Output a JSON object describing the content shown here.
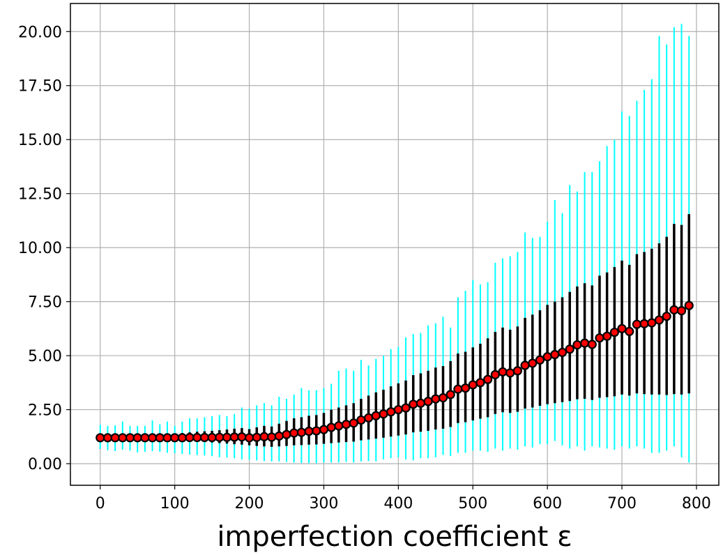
{
  "chart_data": {
    "type": "scatter",
    "title": "",
    "xlabel": "imperfection coefficient ε",
    "ylabel": "",
    "xlim": [
      -40,
      830
    ],
    "ylim": [
      -1.0,
      21.3
    ],
    "x_ticks": [
      0,
      100,
      200,
      300,
      400,
      500,
      600,
      700,
      800
    ],
    "x_tick_labels": [
      "0",
      "100",
      "200",
      "300",
      "400",
      "500",
      "600",
      "700",
      "800"
    ],
    "y_ticks": [
      0,
      2.5,
      5,
      7.5,
      10,
      12.5,
      15,
      17.5,
      20
    ],
    "y_tick_labels": [
      "0.00",
      "2.50",
      "5.00",
      "7.50",
      "10.00",
      "12.50",
      "15.00",
      "17.50",
      "20.00"
    ],
    "grid": true,
    "x": [
      0,
      10,
      20,
      30,
      40,
      50,
      60,
      70,
      80,
      90,
      100,
      110,
      120,
      130,
      140,
      150,
      160,
      170,
      180,
      190,
      200,
      210,
      220,
      230,
      240,
      250,
      260,
      270,
      280,
      290,
      300,
      310,
      320,
      330,
      340,
      350,
      360,
      370,
      380,
      390,
      400,
      410,
      420,
      430,
      440,
      450,
      460,
      470,
      480,
      490,
      500,
      510,
      520,
      530,
      540,
      550,
      560,
      570,
      580,
      590,
      600,
      610,
      620,
      630,
      640,
      650,
      660,
      670,
      680,
      690,
      700,
      710,
      720,
      730,
      740,
      750,
      760,
      770,
      780,
      790
    ],
    "series": [
      {
        "type": "scatter",
        "marker_color": "#ff0000",
        "edge_color": "#000000",
        "values": [
          1.2,
          1.2,
          1.2,
          1.2,
          1.2,
          1.2,
          1.2,
          1.2,
          1.2,
          1.2,
          1.2,
          1.2,
          1.21,
          1.21,
          1.21,
          1.21,
          1.22,
          1.22,
          1.23,
          1.24,
          1.2,
          1.22,
          1.25,
          1.23,
          1.28,
          1.35,
          1.42,
          1.45,
          1.5,
          1.52,
          1.58,
          1.68,
          1.75,
          1.82,
          1.88,
          2.02,
          2.12,
          2.22,
          2.3,
          2.4,
          2.5,
          2.58,
          2.75,
          2.8,
          2.88,
          3.0,
          3.05,
          3.2,
          3.45,
          3.5,
          3.65,
          3.75,
          3.9,
          4.12,
          4.25,
          4.2,
          4.3,
          4.55,
          4.65,
          4.8,
          4.95,
          5.05,
          5.15,
          5.3,
          5.5,
          5.58,
          5.52,
          5.82,
          5.9,
          6.08,
          6.25,
          6.12,
          6.45,
          6.48,
          6.52,
          6.65,
          6.82,
          7.12,
          7.08,
          7.32
        ]
      },
      {
        "type": "errorbar",
        "color": "#000000",
        "lower": [
          1.05,
          1.05,
          1.05,
          1.05,
          1.05,
          1.05,
          1.05,
          1.05,
          1.05,
          1.05,
          1.05,
          1.05,
          1.02,
          1.02,
          1.0,
          0.98,
          0.95,
          0.93,
          0.9,
          0.88,
          0.85,
          0.82,
          0.8,
          0.78,
          0.8,
          0.82,
          0.85,
          0.86,
          0.88,
          0.89,
          0.92,
          0.95,
          0.98,
          1.0,
          1.02,
          1.08,
          1.12,
          1.16,
          1.2,
          1.25,
          1.3,
          1.35,
          1.45,
          1.48,
          1.52,
          1.58,
          1.62,
          1.7,
          1.88,
          1.92,
          2.0,
          2.08,
          2.15,
          2.3,
          2.38,
          2.35,
          2.4,
          2.55,
          2.6,
          2.68,
          2.75,
          2.8,
          2.85,
          2.9,
          2.98,
          3.0,
          2.95,
          3.05,
          3.08,
          3.12,
          3.2,
          3.15,
          3.25,
          3.22,
          3.2,
          3.2,
          3.18,
          3.22,
          3.2,
          3.25
        ],
        "upper": [
          1.38,
          1.38,
          1.38,
          1.38,
          1.38,
          1.38,
          1.38,
          1.38,
          1.38,
          1.38,
          1.4,
          1.42,
          1.45,
          1.48,
          1.5,
          1.52,
          1.55,
          1.58,
          1.62,
          1.65,
          1.6,
          1.68,
          1.75,
          1.72,
          1.85,
          1.98,
          2.1,
          2.15,
          2.22,
          2.25,
          2.35,
          2.5,
          2.6,
          2.7,
          2.8,
          3.0,
          3.15,
          3.3,
          3.42,
          3.58,
          3.72,
          3.85,
          4.1,
          4.18,
          4.3,
          4.45,
          4.52,
          4.75,
          5.1,
          5.18,
          5.38,
          5.55,
          5.8,
          6.1,
          6.3,
          6.2,
          6.35,
          6.75,
          6.9,
          7.1,
          7.35,
          7.5,
          7.7,
          7.95,
          8.2,
          8.35,
          8.25,
          8.7,
          8.85,
          9.1,
          9.4,
          9.2,
          9.7,
          9.8,
          9.95,
          10.2,
          10.5,
          11.1,
          11.05,
          11.55
        ]
      },
      {
        "type": "errorbar",
        "color": "#00ffff",
        "lower": [
          0.68,
          0.62,
          0.58,
          0.65,
          0.6,
          0.52,
          0.55,
          0.58,
          0.55,
          0.5,
          0.48,
          0.45,
          0.42,
          0.4,
          0.38,
          0.35,
          0.3,
          0.28,
          0.25,
          0.2,
          0.18,
          0.15,
          0.12,
          0.1,
          0.1,
          0.08,
          0.05,
          0.03,
          0.02,
          0.02,
          0.05,
          0.05,
          0.05,
          0.08,
          0.05,
          0.1,
          0.12,
          0.1,
          0.2,
          0.25,
          0.3,
          0.2,
          0.15,
          0.25,
          0.25,
          0.3,
          0.4,
          0.35,
          0.5,
          0.5,
          0.6,
          0.6,
          0.55,
          0.7,
          0.6,
          0.7,
          0.65,
          0.8,
          0.75,
          0.9,
          0.9,
          1.05,
          0.85,
          0.7,
          0.8,
          0.6,
          0.8,
          0.75,
          0.7,
          0.65,
          0.8,
          0.7,
          0.8,
          0.7,
          0.5,
          0.5,
          0.6,
          0.8,
          0.3,
          0.05
        ],
        "upper": [
          1.8,
          1.75,
          1.78,
          1.95,
          1.75,
          1.75,
          1.75,
          2.0,
          1.82,
          1.95,
          1.75,
          1.95,
          2.1,
          2.1,
          2.15,
          2.2,
          2.25,
          2.2,
          2.3,
          2.6,
          2.55,
          2.7,
          2.8,
          2.7,
          3.1,
          3.0,
          3.2,
          3.5,
          3.4,
          3.4,
          3.5,
          3.7,
          4.3,
          4.4,
          4.3,
          4.8,
          4.55,
          4.85,
          5.0,
          5.3,
          5.4,
          5.85,
          6.0,
          6.05,
          6.4,
          6.5,
          6.8,
          6.3,
          7.7,
          8.0,
          8.5,
          8.3,
          8.4,
          9.3,
          9.5,
          9.6,
          9.8,
          10.7,
          10.45,
          10.5,
          11.2,
          12.2,
          11.6,
          12.9,
          12.6,
          13.5,
          13.5,
          14.0,
          14.7,
          15.0,
          16.3,
          16.1,
          16.8,
          17.3,
          17.8,
          19.8,
          19.4,
          20.2,
          20.35,
          19.8
        ]
      }
    ]
  }
}
